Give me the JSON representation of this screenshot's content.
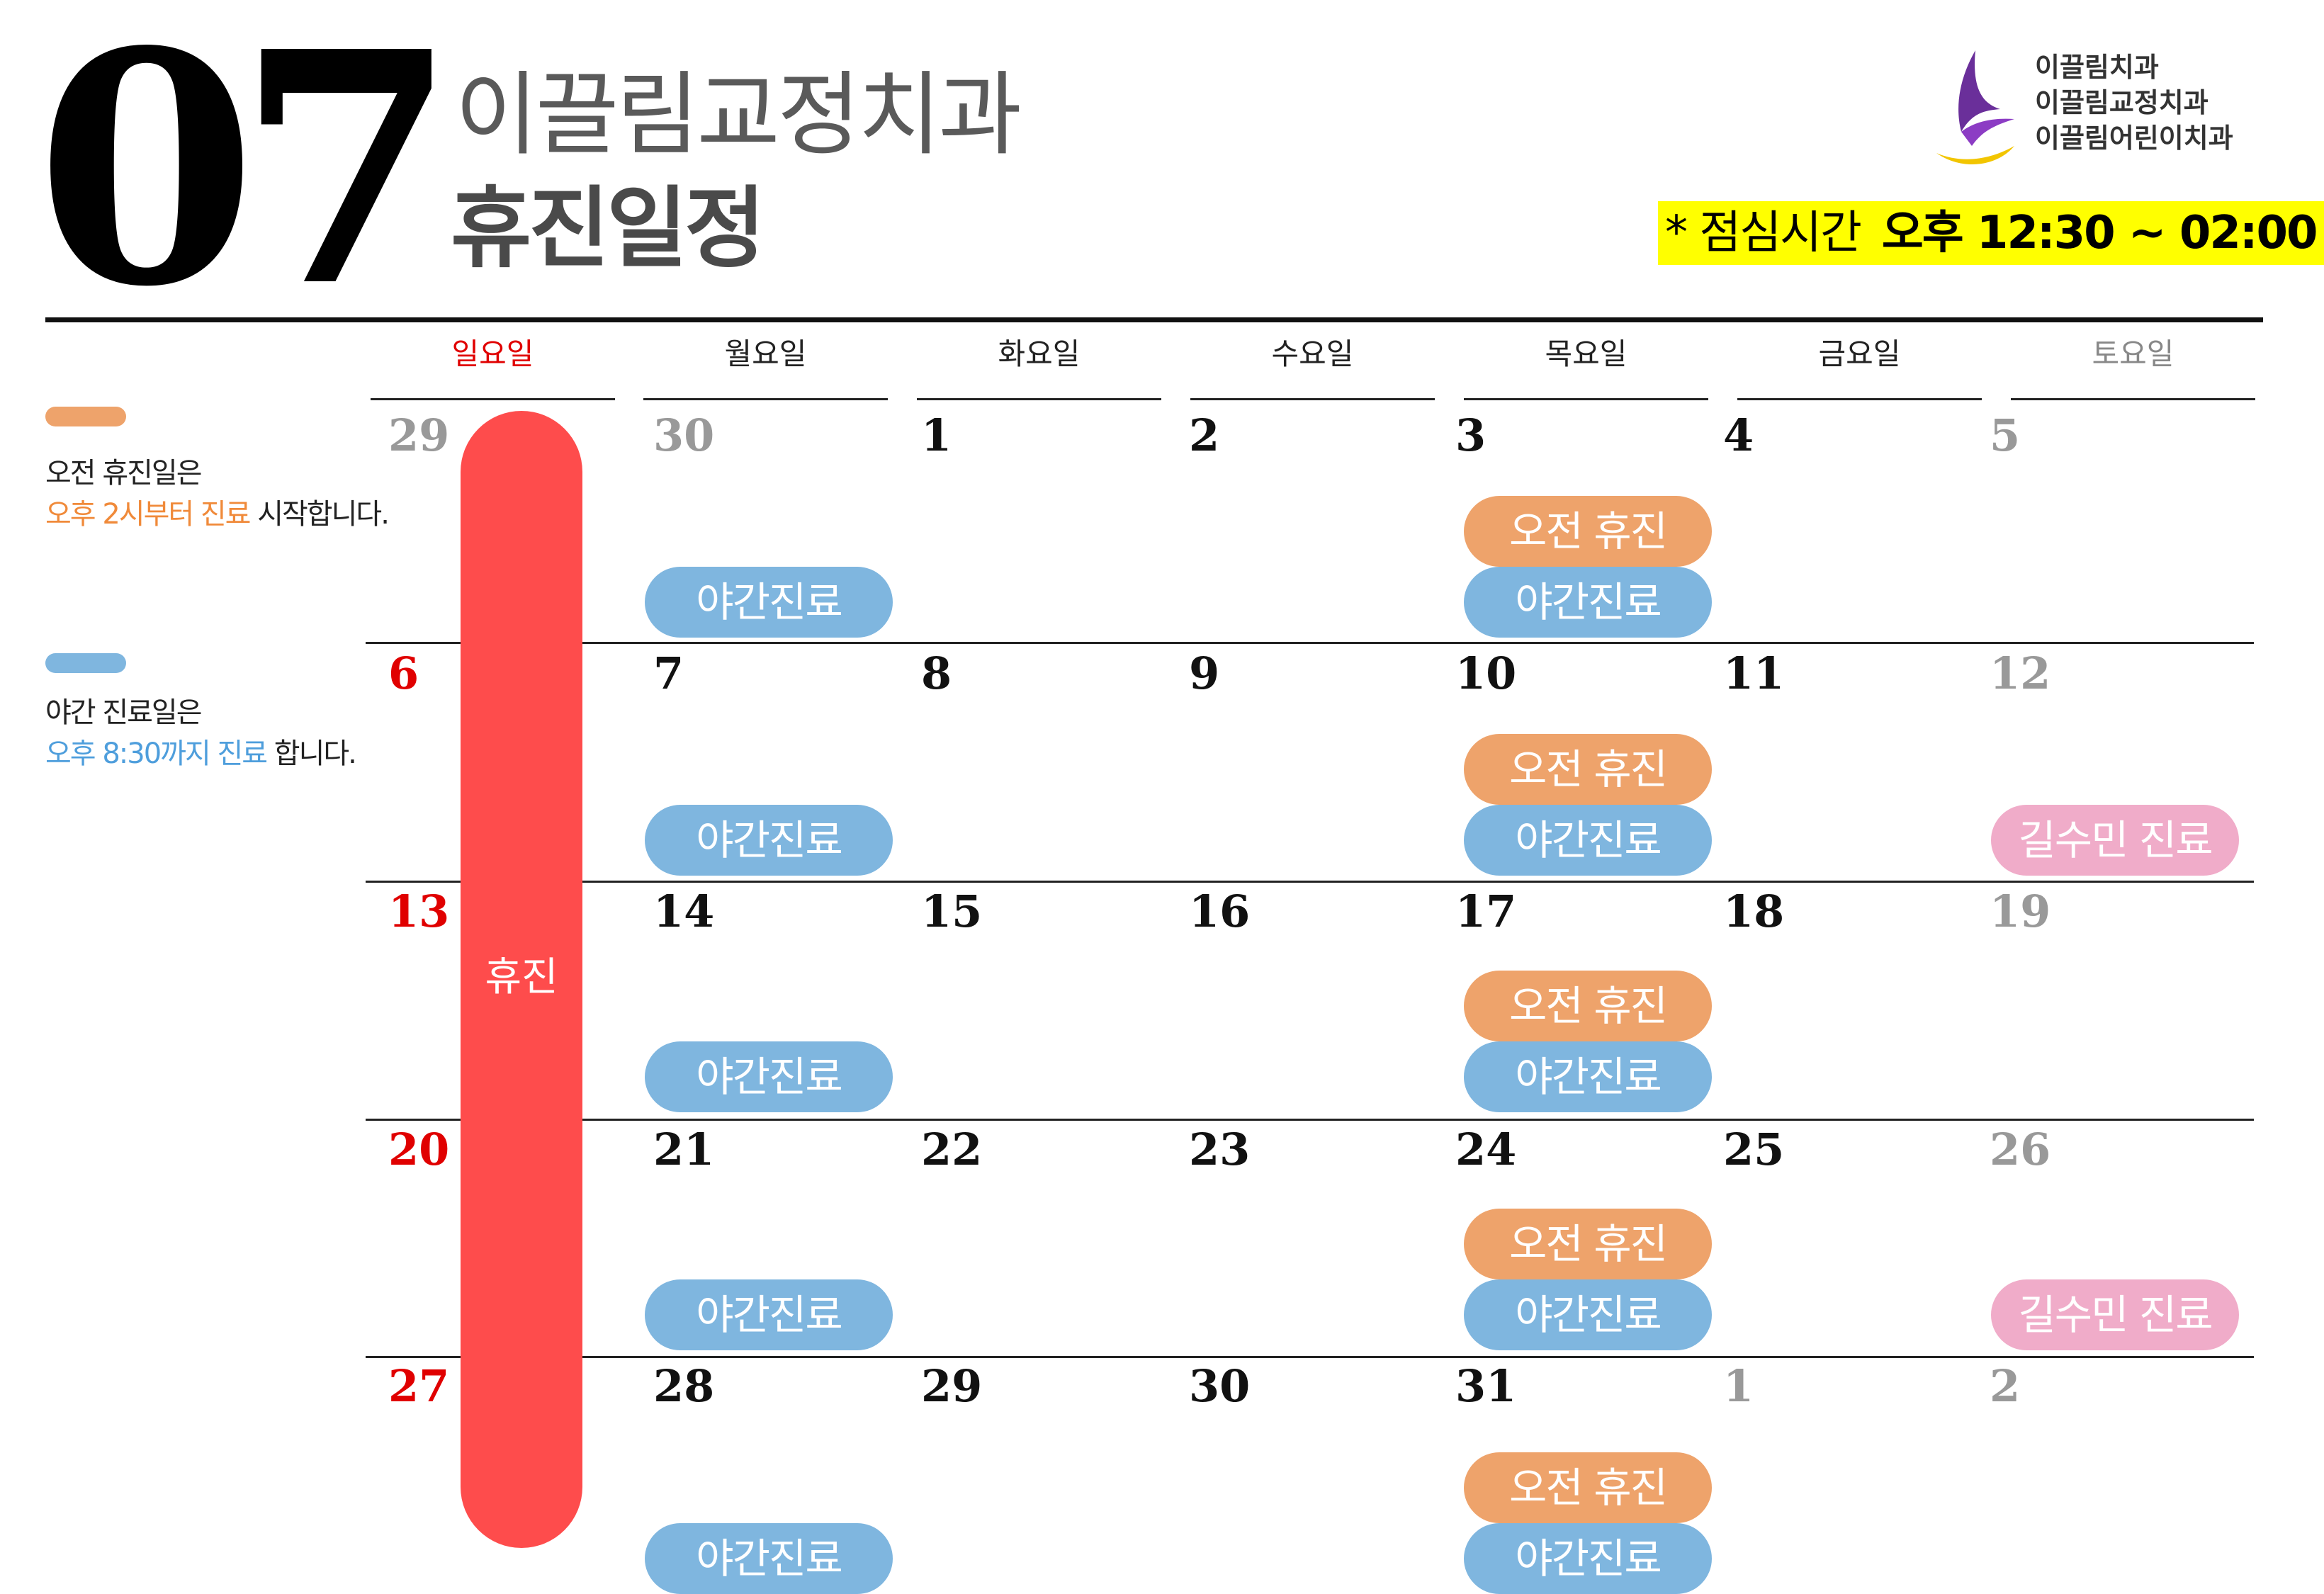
{
  "header": {
    "month": "07",
    "clinic_name": "이끌림교정치과",
    "subtitle": "휴진일정",
    "logo_lines": [
      "이끌림치과",
      "이끌림교정치과",
      "이끌림어린이치과"
    ],
    "lunch_prefix": "* 점심시간",
    "lunch_time": "오후 12:30 ~ 02:00"
  },
  "legend": {
    "morning": {
      "line1": "오전 휴진일은",
      "highlight": "오후 2시부터 진료",
      "suffix": " 시작합니다.",
      "color": "#eea36b"
    },
    "night": {
      "line1": "야간 진료일은",
      "highlight": "오후 8:30까지 진료",
      "suffix": " 합니다.",
      "color": "#7fb6df"
    }
  },
  "day_names": [
    "일요일",
    "월요일",
    "화요일",
    "수요일",
    "목요일",
    "금요일",
    "토요일"
  ],
  "weeks": [
    [
      "29",
      "30",
      "1",
      "2",
      "3",
      "4",
      "5"
    ],
    [
      "6",
      "7",
      "8",
      "9",
      "10",
      "11",
      "12"
    ],
    [
      "13",
      "14",
      "15",
      "16",
      "17",
      "18",
      "19"
    ],
    [
      "20",
      "21",
      "22",
      "23",
      "24",
      "25",
      "26"
    ],
    [
      "27",
      "28",
      "29",
      "30",
      "31",
      "1",
      "2"
    ]
  ],
  "events": {
    "closure": "휴진",
    "morning_off": "오전 휴진",
    "night_clinic": "야간진료",
    "special": "길수민 진료"
  },
  "colors": {
    "sunday": "#e00000",
    "closure": "#fe4c4c",
    "morning_off": "#eea36b",
    "night_clinic": "#7fb6df",
    "special": "#f0acc9",
    "lunch_highlight": "#ffff00"
  }
}
